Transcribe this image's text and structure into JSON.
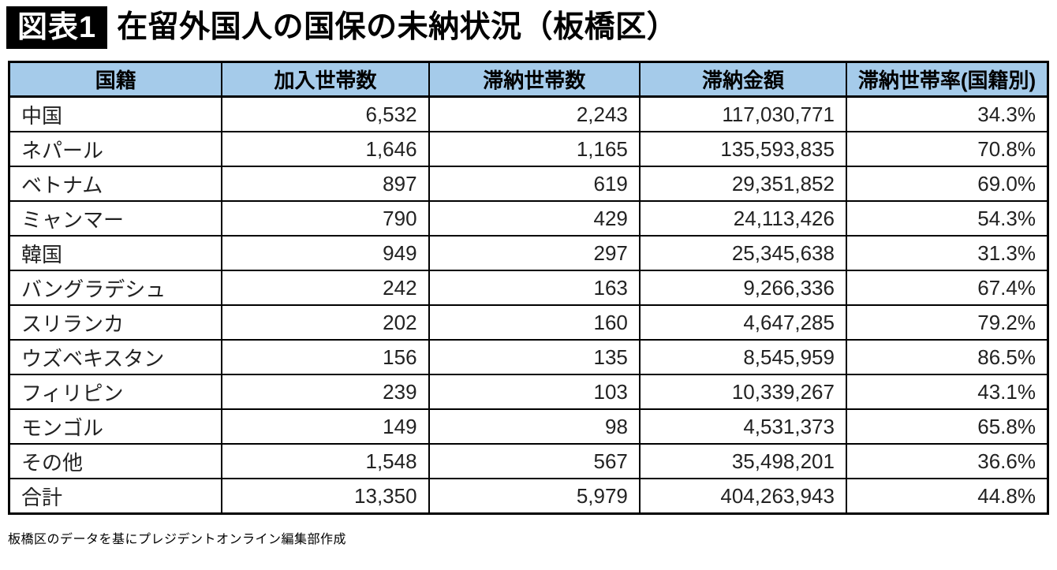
{
  "title": {
    "badge": "図表1",
    "text": "在留外国人の国保の未納状況（板橋区）"
  },
  "table": {
    "columns": [
      "国籍",
      "加入世帯数",
      "滞納世帯数",
      "滞納金額",
      "滞納世帯率(国籍別)"
    ],
    "rows": [
      [
        "中国",
        "6,532",
        "2,243",
        "117,030,771",
        "34.3%"
      ],
      [
        "ネパール",
        "1,646",
        "1,165",
        "135,593,835",
        "70.8%"
      ],
      [
        "ベトナム",
        "897",
        "619",
        "29,351,852",
        "69.0%"
      ],
      [
        "ミャンマー",
        "790",
        "429",
        "24,113,426",
        "54.3%"
      ],
      [
        "韓国",
        "949",
        "297",
        "25,345,638",
        "31.3%"
      ],
      [
        "バングラデシュ",
        "242",
        "163",
        "9,266,336",
        "67.4%"
      ],
      [
        "スリランカ",
        "202",
        "160",
        "4,647,285",
        "79.2%"
      ],
      [
        "ウズベキスタン",
        "156",
        "135",
        "8,545,959",
        "86.5%"
      ],
      [
        "フィリピン",
        "239",
        "103",
        "10,339,267",
        "43.1%"
      ],
      [
        "モンゴル",
        "149",
        "98",
        "4,531,373",
        "65.8%"
      ],
      [
        "その他",
        "1,548",
        "567",
        "35,498,201",
        "36.6%"
      ],
      [
        "合計",
        "13,350",
        "5,979",
        "404,263,943",
        "44.8%"
      ]
    ]
  },
  "footer": {
    "source": "板橋区のデータを基にプレジデントオンライン編集部作成"
  },
  "colors": {
    "header_bg": "#a5cbea",
    "border": "#000000",
    "badge_bg": "#000000",
    "badge_text": "#ffffff",
    "body_text": "#222222"
  },
  "chart_data": {
    "type": "table",
    "title": "在留外国人の国保の未納状況（板橋区）",
    "columns": [
      "国籍",
      "加入世帯数",
      "滞納世帯数",
      "滞納金額",
      "滞納世帯率(国籍別)"
    ],
    "categories": [
      "中国",
      "ネパール",
      "ベトナム",
      "ミャンマー",
      "韓国",
      "バングラデシュ",
      "スリランカ",
      "ウズベキスタン",
      "フィリピン",
      "モンゴル",
      "その他",
      "合計"
    ],
    "series": [
      {
        "name": "加入世帯数",
        "values": [
          6532,
          1646,
          897,
          790,
          949,
          242,
          202,
          156,
          239,
          149,
          1548,
          13350
        ]
      },
      {
        "name": "滞納世帯数",
        "values": [
          2243,
          1165,
          619,
          429,
          297,
          163,
          160,
          135,
          103,
          98,
          567,
          5979
        ]
      },
      {
        "name": "滞納金額",
        "values": [
          117030771,
          135593835,
          29351852,
          24113426,
          25345638,
          9266336,
          4647285,
          8545959,
          10339267,
          4531373,
          35498201,
          404263943
        ]
      },
      {
        "name": "滞納世帯率(国籍別)",
        "values": [
          34.3,
          70.8,
          69.0,
          54.3,
          31.3,
          67.4,
          79.2,
          86.5,
          43.1,
          65.8,
          36.6,
          44.8
        ]
      }
    ],
    "source": "板橋区のデータを基にプレジデントオンライン編集部作成"
  }
}
